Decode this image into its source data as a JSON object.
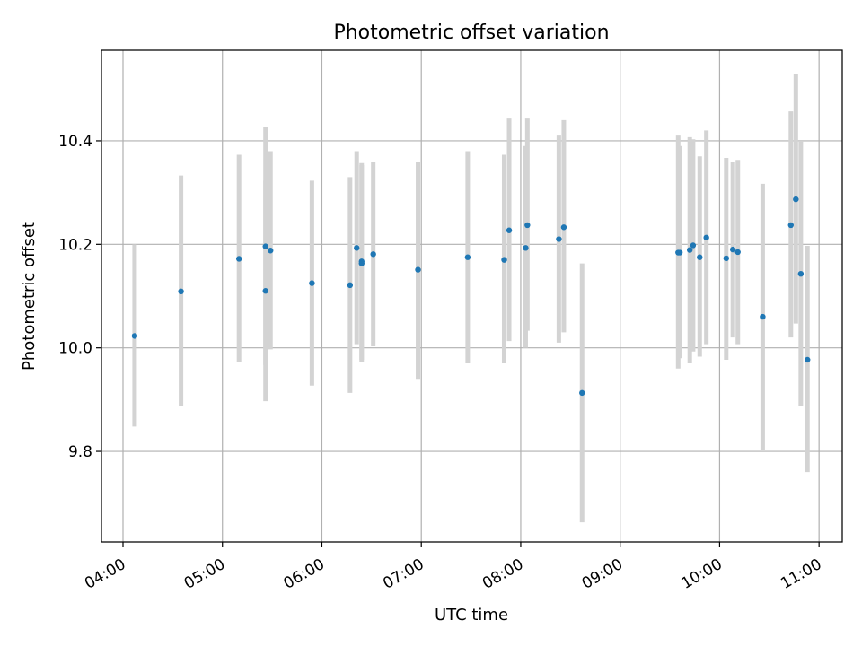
{
  "chart_data": {
    "type": "scatter",
    "title": "Photometric offset variation",
    "xlabel": "UTC time",
    "ylabel": "Photometric offset",
    "grid": true,
    "xlim": [
      "03:47",
      "11:14"
    ],
    "ylim": [
      9.625,
      10.575
    ],
    "x_ticks": [
      "04:00",
      "05:00",
      "06:00",
      "07:00",
      "08:00",
      "09:00",
      "10:00",
      "11:00"
    ],
    "y_ticks": [
      9.8,
      10.0,
      10.2,
      10.4
    ],
    "colors": {
      "point": "#1f77b4",
      "error_bar": "#d3d3d3",
      "grid": "#b0b0b0"
    },
    "points": [
      {
        "x": "04:07",
        "y": 10.023,
        "lo": 9.848,
        "hi": 10.2
      },
      {
        "x": "04:35",
        "y": 10.109,
        "lo": 9.887,
        "hi": 10.333
      },
      {
        "x": "05:10",
        "y": 10.172,
        "lo": 9.973,
        "hi": 10.373
      },
      {
        "x": "05:26",
        "y": 10.196,
        "lo": 9.967,
        "hi": 10.427
      },
      {
        "x": "05:26",
        "y": 10.11,
        "lo": 9.897,
        "hi": 10.323
      },
      {
        "x": "05:29",
        "y": 10.188,
        "lo": 9.997,
        "hi": 10.38
      },
      {
        "x": "05:54",
        "y": 10.125,
        "lo": 9.927,
        "hi": 10.323
      },
      {
        "x": "06:17",
        "y": 10.121,
        "lo": 9.913,
        "hi": 10.33
      },
      {
        "x": "06:21",
        "y": 10.193,
        "lo": 10.007,
        "hi": 10.38
      },
      {
        "x": "06:24",
        "y": 10.167,
        "lo": 9.977,
        "hi": 10.357
      },
      {
        "x": "06:24",
        "y": 10.163,
        "lo": 9.973,
        "hi": 10.353
      },
      {
        "x": "06:31",
        "y": 10.181,
        "lo": 10.003,
        "hi": 10.36
      },
      {
        "x": "06:58",
        "y": 10.151,
        "lo": 9.94,
        "hi": 10.36
      },
      {
        "x": "07:28",
        "y": 10.175,
        "lo": 9.97,
        "hi": 10.38
      },
      {
        "x": "07:50",
        "y": 10.17,
        "lo": 9.97,
        "hi": 10.373
      },
      {
        "x": "07:53",
        "y": 10.227,
        "lo": 10.013,
        "hi": 10.443
      },
      {
        "x": "08:03",
        "y": 10.193,
        "lo": 10.0,
        "hi": 10.39
      },
      {
        "x": "08:04",
        "y": 10.237,
        "lo": 10.033,
        "hi": 10.443
      },
      {
        "x": "08:23",
        "y": 10.21,
        "lo": 10.01,
        "hi": 10.41
      },
      {
        "x": "08:26",
        "y": 10.233,
        "lo": 10.03,
        "hi": 10.44
      },
      {
        "x": "08:37",
        "y": 9.913,
        "lo": 9.663,
        "hi": 10.163
      },
      {
        "x": "09:35",
        "y": 10.184,
        "lo": 9.96,
        "hi": 10.41
      },
      {
        "x": "09:36",
        "y": 10.184,
        "lo": 9.98,
        "hi": 10.39
      },
      {
        "x": "09:42",
        "y": 10.189,
        "lo": 9.97,
        "hi": 10.407
      },
      {
        "x": "09:44",
        "y": 10.198,
        "lo": 9.993,
        "hi": 10.403
      },
      {
        "x": "09:48",
        "y": 10.175,
        "lo": 9.983,
        "hi": 10.37
      },
      {
        "x": "09:52",
        "y": 10.213,
        "lo": 10.007,
        "hi": 10.42
      },
      {
        "x": "10:04",
        "y": 10.173,
        "lo": 9.977,
        "hi": 10.367
      },
      {
        "x": "10:08",
        "y": 10.19,
        "lo": 10.02,
        "hi": 10.36
      },
      {
        "x": "10:11",
        "y": 10.185,
        "lo": 10.007,
        "hi": 10.363
      },
      {
        "x": "10:26",
        "y": 10.06,
        "lo": 9.803,
        "hi": 10.317
      },
      {
        "x": "10:43",
        "y": 10.237,
        "lo": 10.02,
        "hi": 10.457
      },
      {
        "x": "10:46",
        "y": 10.287,
        "lo": 10.047,
        "hi": 10.53
      },
      {
        "x": "10:49",
        "y": 10.143,
        "lo": 9.887,
        "hi": 10.4
      },
      {
        "x": "10:53",
        "y": 9.977,
        "lo": 9.76,
        "hi": 10.197
      }
    ]
  }
}
